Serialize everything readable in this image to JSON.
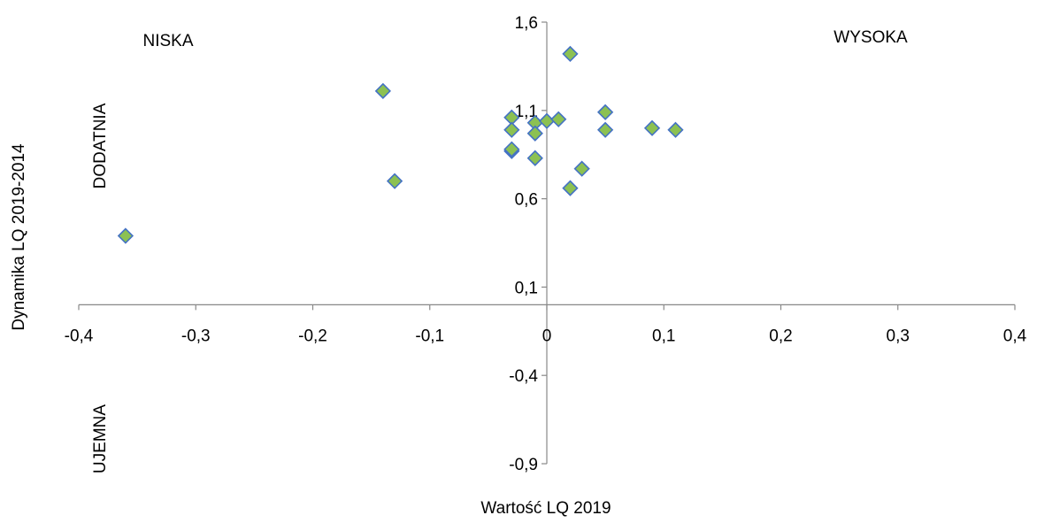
{
  "chart_data": {
    "type": "scatter",
    "title": "",
    "xlabel": "Wartość LQ 2019",
    "ylabel": "Dynamika LQ 2019-2014",
    "xlim": [
      -0.4,
      0.4
    ],
    "ylim": [
      -0.9,
      1.6
    ],
    "x_ticks": [
      "-0,4",
      "-0,3",
      "-0,2",
      "-0,1",
      "0",
      "0,1",
      "0,2",
      "0,3",
      "0,4"
    ],
    "y_ticks": [
      "1,6",
      "1,1",
      "0,6",
      "0,1",
      "-0,4",
      "-0,9"
    ],
    "grid": false,
    "legend": "none",
    "marker": {
      "shape": "diamond",
      "fill": "#8CC152",
      "stroke": "#4472C4"
    },
    "annotations": [
      "NISKA",
      "WYSOKA",
      "DODATNIA",
      "UJEMNA"
    ],
    "points": [
      {
        "x": -0.36,
        "y": 0.39
      },
      {
        "x": -0.14,
        "y": 1.21
      },
      {
        "x": -0.13,
        "y": 0.7
      },
      {
        "x": -0.03,
        "y": 1.06
      },
      {
        "x": -0.03,
        "y": 0.99
      },
      {
        "x": -0.03,
        "y": 0.87
      },
      {
        "x": -0.03,
        "y": 0.88
      },
      {
        "x": -0.01,
        "y": 1.03
      },
      {
        "x": -0.01,
        "y": 0.97
      },
      {
        "x": -0.01,
        "y": 0.83
      },
      {
        "x": 0.0,
        "y": 1.04
      },
      {
        "x": 0.01,
        "y": 1.05
      },
      {
        "x": 0.02,
        "y": 1.42
      },
      {
        "x": 0.02,
        "y": 0.66
      },
      {
        "x": 0.03,
        "y": 0.77
      },
      {
        "x": 0.05,
        "y": 1.09
      },
      {
        "x": 0.05,
        "y": 0.99
      },
      {
        "x": 0.09,
        "y": 1.0
      },
      {
        "x": 0.11,
        "y": 0.99
      }
    ]
  }
}
